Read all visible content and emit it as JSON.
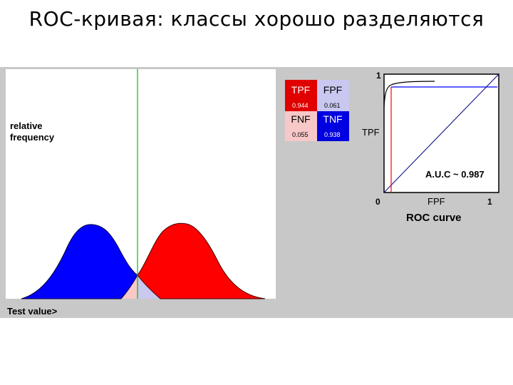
{
  "title": "ROC-кривая: классы хорошо разделяются",
  "distribution_panel": {
    "y_label_line1": "relative",
    "y_label_line2": "frequency",
    "x_label": "Test value>"
  },
  "confusion": {
    "tpf_label": "TPF",
    "fpf_label": "FPF",
    "fnf_label": "FNF",
    "tnf_label": "TNF",
    "tpf_value": "0.944",
    "fpf_value": "0.061",
    "fnf_value": "0.055",
    "tnf_value": "0.938"
  },
  "roc": {
    "y_axis_label": "TPF",
    "x_axis_label": "FPF",
    "tick_one_top": "1",
    "tick_zero": "0",
    "tick_one_right": "1",
    "auc_text": "A.U.C ~ 0.987",
    "caption": "ROC curve"
  },
  "colors": {
    "panel_bg": "#c8c8c8",
    "plot_bg": "#ffffff",
    "positive": "#ff0000",
    "negative": "#0000ff",
    "tpf_cell": "#e00000",
    "fpf_cell": "#c8c8f0",
    "fnf_cell": "#f8c8c8",
    "tnf_cell": "#0000e0",
    "threshold": "#00c000",
    "overlap_pink": "#f8c8c8",
    "overlap_lavender": "#c8c8f0"
  }
}
